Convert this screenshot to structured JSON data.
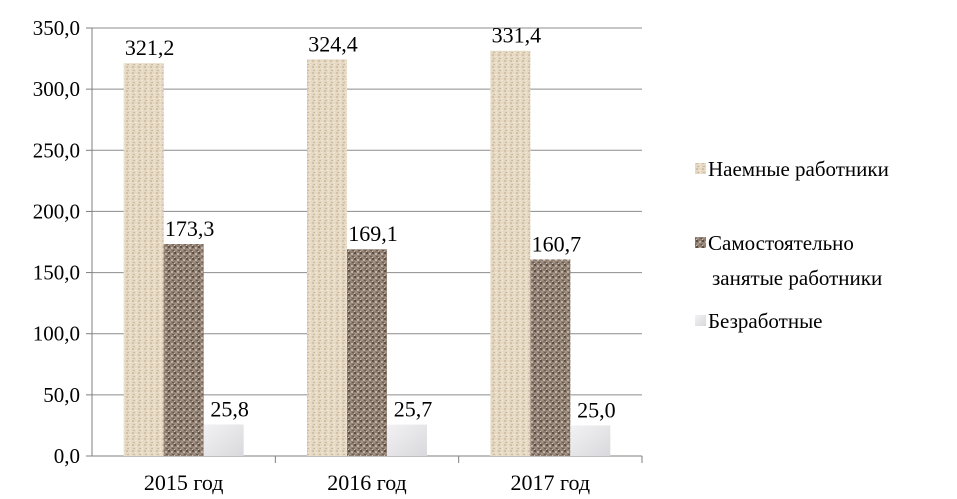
{
  "chart_data": {
    "type": "bar",
    "categories": [
      "2015 год",
      "2016 год",
      "2017 год"
    ],
    "series": [
      {
        "name": "Наемные работники",
        "values": [
          321.2,
          324.4,
          331.4
        ],
        "labels": [
          "321,2",
          "324,4",
          "331,4"
        ],
        "color": "#e3d6c1"
      },
      {
        "name": "Самостоятельно занятые работники",
        "values": [
          173.3,
          169.1,
          160.7
        ],
        "labels": [
          "173,3",
          "169,1",
          "160,7"
        ],
        "color": "#8b7a6c"
      },
      {
        "name": "Безработные",
        "values": [
          25.8,
          25.7,
          25.0
        ],
        "labels": [
          "25,8",
          "25,7",
          "25,0"
        ],
        "color": "#e6e6e9"
      }
    ],
    "y_ticks": [
      "0,0",
      "50,0",
      "100,0",
      "150,0",
      "200,0",
      "250,0",
      "300,0",
      "350,0"
    ],
    "ylim": [
      0,
      350
    ],
    "grid": true,
    "legend_position": "right",
    "legend_lines": [
      [
        "Наемные работники"
      ],
      [
        "Самостоятельно",
        "занятые работники"
      ],
      [
        "Безработные"
      ]
    ]
  }
}
